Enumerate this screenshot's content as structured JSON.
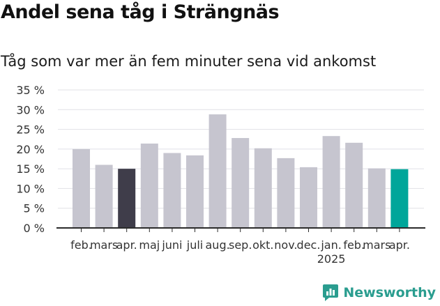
{
  "header": {
    "title": "Andel sena tåg i Strängnäs",
    "subtitle": "Tåg som var mer än fem minuter sena vid ankomst"
  },
  "brand": {
    "name": "Newsworthy",
    "icon": "newsworthy-logo-icon",
    "color": "#2a9d8f"
  },
  "chart_data": {
    "type": "bar",
    "title": "Andel sena tåg i Strängnäs",
    "subtitle": "Tåg som var mer än fem minuter sena vid ankomst",
    "categories": [
      "feb.",
      "mars",
      "apr.",
      "maj",
      "juni",
      "juli",
      "aug.",
      "sep.",
      "okt.",
      "nov.",
      "dec.",
      "jan.",
      "feb.",
      "mars",
      "apr."
    ],
    "year_labels": [
      {
        "category_index": 11,
        "label": "2025"
      }
    ],
    "values": [
      20,
      16,
      15,
      21.4,
      19,
      18.4,
      28.8,
      22.8,
      20.2,
      17.7,
      15.4,
      23.3,
      21.6,
      15.1,
      14.9
    ],
    "ylim": [
      0,
      35
    ],
    "yticks": [
      0,
      5,
      10,
      15,
      20,
      25,
      30,
      35
    ],
    "ytick_labels": [
      "0 %",
      "5 %",
      "10 %",
      "15 %",
      "20 %",
      "25 %",
      "30 %",
      "35 %"
    ],
    "grid": true,
    "colors": {
      "default": "#c6c5cf",
      "highlight_previous": "#3f3d4a",
      "highlight_current": "#00a69a"
    },
    "highlight": {
      "2": "highlight_previous",
      "14": "highlight_current"
    }
  }
}
